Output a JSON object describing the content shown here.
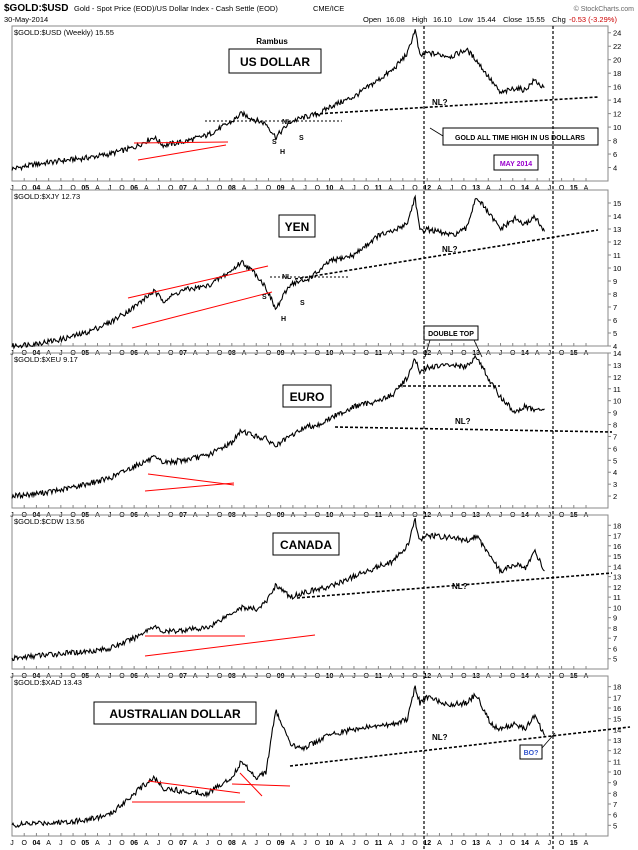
{
  "header": {
    "symbol": "$GOLD:$USD",
    "description": "Gold - Spot Price (EOD)/US Dollar Index - Cash Settle (EOD)",
    "exchange": "CME/ICE",
    "date": "30-May-2014",
    "open_label": "Open",
    "open": "16.08",
    "high_label": "High",
    "high": "16.10",
    "low_label": "Low",
    "low": "15.44",
    "close_label": "Close",
    "close": "15.55",
    "chg_label": "Chg",
    "chg": "-0.53 (-3.29%)",
    "copyright": "© StockCharts.com",
    "chg_color": "#cc0000"
  },
  "annotations": {
    "author": "Rambus",
    "gold_ath": "GOLD ALL TIME HIGH IN US DOLLARS",
    "may_2014": "MAY 2014",
    "double_top": "DOUBLE TOP",
    "bo": "BO?",
    "neckline": "NL?",
    "nl": "NL",
    "s": "S",
    "h": "H"
  },
  "chart_data": {
    "type": "line",
    "x_ticks": [
      "J",
      "O",
      "04",
      "A",
      "J",
      "O",
      "05",
      "A",
      "J",
      "O",
      "06",
      "A",
      "J",
      "O",
      "07",
      "A",
      "J",
      "O",
      "08",
      "A",
      "J",
      "O",
      "09",
      "A",
      "J",
      "O",
      "10",
      "A",
      "J",
      "O",
      "11",
      "A",
      "J",
      "O",
      "12",
      "A",
      "J",
      "O",
      "13",
      "A",
      "J",
      "O",
      "14",
      "A",
      "J",
      "O",
      "15",
      "A"
    ],
    "line_color": "#000000",
    "trendline_color": "#ff0000",
    "panels": [
      {
        "legend": "$GOLD:$USD (Weekly) 15.55",
        "title": "US DOLLAR",
        "ylim": [
          2,
          25
        ],
        "y_ticks": [
          4,
          6,
          8,
          10,
          12,
          14,
          16,
          18,
          20,
          22,
          24
        ],
        "x": [
          2003.5,
          2004.0,
          2004.5,
          2005.0,
          2005.5,
          2006.0,
          2006.4,
          2006.6,
          2007.0,
          2007.5,
          2008.0,
          2008.2,
          2008.5,
          2008.7,
          2008.9,
          2009.2,
          2009.5,
          2009.8,
          2010.0,
          2010.5,
          2011.0,
          2011.3,
          2011.6,
          2011.75,
          2011.85,
          2012.0,
          2012.5,
          2012.8,
          2013.0,
          2013.3,
          2013.5,
          2013.8,
          2014.0,
          2014.2,
          2014.4
        ],
        "values": [
          3.8,
          4.5,
          5.0,
          5.4,
          6.0,
          7.0,
          8.5,
          7.3,
          7.8,
          8.8,
          10.8,
          12.0,
          11.0,
          10.5,
          8.5,
          10.8,
          11.5,
          12.0,
          13.0,
          14.5,
          17.0,
          18.5,
          21.0,
          24.5,
          20.5,
          21.0,
          20.5,
          21.5,
          20.0,
          17.0,
          15.0,
          15.8,
          15.5,
          17.0,
          15.6
        ]
      },
      {
        "legend": "$GOLD:$XJY 12.73",
        "title": "YEN",
        "ylim": [
          4,
          16
        ],
        "y_ticks": [
          4,
          5,
          6,
          7,
          8,
          9,
          10,
          11,
          12,
          13,
          14,
          15
        ],
        "x": [
          2003.5,
          2004.0,
          2004.5,
          2005.0,
          2005.5,
          2006.0,
          2006.4,
          2006.6,
          2007.0,
          2007.5,
          2008.0,
          2008.2,
          2008.5,
          2008.7,
          2008.9,
          2009.2,
          2009.5,
          2009.8,
          2010.0,
          2010.5,
          2011.0,
          2011.3,
          2011.6,
          2011.75,
          2011.85,
          2012.0,
          2012.5,
          2012.8,
          2013.0,
          2013.3,
          2013.5,
          2013.8,
          2014.0,
          2014.2,
          2014.4
        ],
        "values": [
          4.0,
          4.2,
          4.5,
          5.0,
          5.8,
          7.0,
          8.2,
          7.5,
          8.3,
          8.6,
          9.8,
          10.5,
          9.5,
          8.5,
          6.8,
          8.8,
          9.0,
          9.8,
          10.5,
          11.0,
          12.5,
          12.8,
          13.5,
          15.5,
          12.8,
          13.0,
          12.5,
          13.0,
          15.5,
          14.0,
          13.0,
          13.8,
          13.3,
          14.0,
          12.7
        ]
      },
      {
        "legend": "$GOLD:$XEU 9.17",
        "title": "EURO",
        "ylim": [
          1,
          14
        ],
        "y_ticks": [
          2,
          3,
          4,
          5,
          6,
          7,
          8,
          9,
          10,
          11,
          12,
          13,
          14
        ],
        "x": [
          2003.5,
          2004.0,
          2004.5,
          2005.0,
          2005.5,
          2006.0,
          2006.4,
          2006.6,
          2007.0,
          2007.5,
          2008.0,
          2008.2,
          2008.5,
          2008.7,
          2008.9,
          2009.2,
          2009.5,
          2009.8,
          2010.0,
          2010.5,
          2011.0,
          2011.3,
          2011.6,
          2011.75,
          2011.85,
          2012.0,
          2012.5,
          2012.8,
          2013.0,
          2013.3,
          2013.5,
          2013.8,
          2014.0,
          2014.2,
          2014.4
        ],
        "values": [
          2.0,
          2.2,
          2.5,
          3.0,
          3.5,
          4.5,
          5.2,
          4.8,
          5.0,
          5.4,
          6.5,
          7.5,
          7.0,
          6.8,
          6.2,
          7.0,
          7.8,
          8.0,
          8.5,
          9.5,
          10.0,
          10.5,
          12.0,
          13.5,
          12.3,
          12.8,
          13.0,
          12.8,
          13.8,
          11.5,
          10.3,
          9.0,
          9.5,
          9.2,
          9.2
        ]
      },
      {
        "legend": "$GOLD:$CDW 13.56",
        "title": "CANADA",
        "ylim": [
          4,
          19
        ],
        "y_ticks": [
          5,
          6,
          7,
          8,
          9,
          10,
          11,
          12,
          13,
          14,
          15,
          16,
          17,
          18
        ],
        "x": [
          2003.5,
          2004.0,
          2004.5,
          2005.0,
          2005.5,
          2006.0,
          2006.4,
          2006.6,
          2007.0,
          2007.5,
          2008.0,
          2008.2,
          2008.5,
          2008.7,
          2008.9,
          2009.2,
          2009.5,
          2009.8,
          2010.0,
          2010.5,
          2011.0,
          2011.3,
          2011.6,
          2011.75,
          2011.85,
          2012.0,
          2012.5,
          2012.8,
          2013.0,
          2013.3,
          2013.5,
          2013.8,
          2014.0,
          2014.2,
          2014.4
        ],
        "values": [
          5.0,
          5.3,
          5.5,
          5.7,
          6.0,
          7.0,
          8.2,
          7.6,
          7.8,
          8.0,
          9.5,
          10.0,
          9.8,
          10.5,
          12.2,
          11.0,
          11.5,
          11.8,
          12.0,
          13.0,
          14.0,
          14.5,
          16.0,
          18.5,
          16.5,
          17.0,
          16.8,
          16.5,
          17.0,
          15.0,
          13.5,
          14.2,
          13.8,
          15.5,
          13.6
        ]
      },
      {
        "legend": "$GOLD:$XAD 13.43",
        "title": "AUSTRALIAN DOLLAR",
        "ylim": [
          4,
          19
        ],
        "y_ticks": [
          5,
          6,
          7,
          8,
          9,
          10,
          11,
          12,
          13,
          14,
          15,
          16,
          17,
          18
        ],
        "x": [
          2003.5,
          2004.0,
          2004.5,
          2005.0,
          2005.5,
          2006.0,
          2006.4,
          2006.6,
          2007.0,
          2007.5,
          2008.0,
          2008.2,
          2008.5,
          2008.7,
          2008.9,
          2009.2,
          2009.5,
          2009.8,
          2010.0,
          2010.5,
          2011.0,
          2011.3,
          2011.6,
          2011.75,
          2011.85,
          2012.0,
          2012.5,
          2012.8,
          2013.0,
          2013.3,
          2013.5,
          2013.8,
          2014.0,
          2014.2,
          2014.4
        ],
        "values": [
          5.0,
          5.2,
          5.3,
          5.5,
          6.0,
          8.0,
          9.5,
          8.5,
          8.2,
          8.0,
          9.5,
          11.0,
          9.5,
          10.0,
          15.8,
          12.5,
          12.3,
          13.0,
          13.5,
          14.0,
          14.3,
          14.5,
          15.0,
          18.0,
          16.5,
          17.0,
          16.3,
          16.5,
          17.3,
          14.5,
          14.0,
          14.5,
          14.0,
          15.3,
          13.4
        ]
      }
    ]
  }
}
